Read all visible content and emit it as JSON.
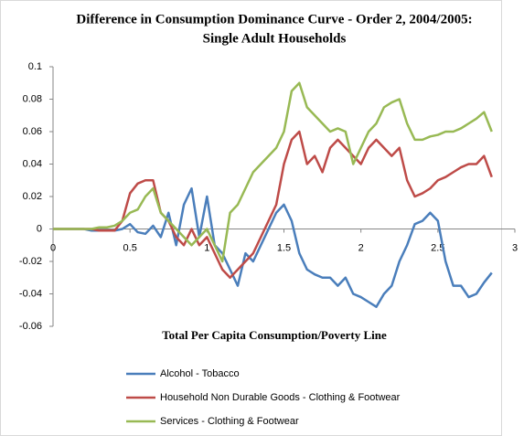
{
  "chart_data": {
    "type": "line",
    "title": "Difference in Consumption Dominance Curve - Order 2, 2004/2005:",
    "subtitle": "Single Adult Households",
    "x_label": "Total Per Capita Consumption/Poverty Line",
    "x": [
      0,
      0.05,
      0.1,
      0.15,
      0.2,
      0.25,
      0.3,
      0.35,
      0.4,
      0.45,
      0.5,
      0.55,
      0.6,
      0.65,
      0.7,
      0.75,
      0.8,
      0.85,
      0.9,
      0.95,
      1,
      1.05,
      1.1,
      1.15,
      1.2,
      1.25,
      1.3,
      1.35,
      1.4,
      1.45,
      1.5,
      1.55,
      1.6,
      1.65,
      1.7,
      1.75,
      1.8,
      1.85,
      1.9,
      1.95,
      2,
      2.05,
      2.1,
      2.15,
      2.2,
      2.25,
      2.3,
      2.35,
      2.4,
      2.45,
      2.5,
      2.55,
      2.6,
      2.65,
      2.7,
      2.75,
      2.8,
      2.85
    ],
    "series": [
      {
        "name": "Alcohol - Tobacco",
        "color": "#4a7ebb",
        "values": [
          0,
          0,
          0,
          0,
          0,
          -0.001,
          -0.001,
          -0.001,
          -0.001,
          0,
          0.003,
          -0.002,
          -0.003,
          0.002,
          -0.005,
          0.01,
          -0.01,
          0.015,
          0.025,
          -0.005,
          0.02,
          -0.01,
          -0.015,
          -0.025,
          -0.035,
          -0.015,
          -0.02,
          -0.01,
          0,
          0.01,
          0.015,
          0.005,
          -0.015,
          -0.025,
          -0.028,
          -0.03,
          -0.03,
          -0.035,
          -0.03,
          -0.04,
          -0.042,
          -0.045,
          -0.048,
          -0.04,
          -0.035,
          -0.02,
          -0.01,
          0.003,
          0.005,
          0.01,
          0.005,
          -0.02,
          -0.035,
          -0.035,
          -0.042,
          -0.04,
          -0.033,
          -0.027
        ]
      },
      {
        "name": "Household Non Durable Goods - Clothing & Footwear",
        "color": "#be4b48",
        "values": [
          0,
          0,
          0,
          0,
          0,
          0,
          -0.001,
          -0.001,
          -0.001,
          0.005,
          0.022,
          0.028,
          0.03,
          0.03,
          0.01,
          0.005,
          -0.005,
          -0.01,
          0,
          -0.01,
          -0.005,
          -0.015,
          -0.025,
          -0.03,
          -0.025,
          -0.02,
          -0.015,
          -0.005,
          0.005,
          0.015,
          0.04,
          0.055,
          0.06,
          0.04,
          0.045,
          0.035,
          0.05,
          0.055,
          0.05,
          0.045,
          0.04,
          0.05,
          0.055,
          0.05,
          0.045,
          0.05,
          0.03,
          0.02,
          0.022,
          0.025,
          0.03,
          0.032,
          0.035,
          0.038,
          0.04,
          0.04,
          0.045,
          0.032
        ]
      },
      {
        "name": "Services - Clothing & Footwear",
        "color": "#98b954",
        "values": [
          0,
          0,
          0,
          0,
          0,
          0,
          0.001,
          0.001,
          0.002,
          0.005,
          0.01,
          0.012,
          0.02,
          0.025,
          0.01,
          0.005,
          0,
          -0.005,
          -0.01,
          -0.005,
          0,
          -0.01,
          -0.02,
          0.01,
          0.015,
          0.025,
          0.035,
          0.04,
          0.045,
          0.05,
          0.06,
          0.085,
          0.09,
          0.075,
          0.07,
          0.065,
          0.06,
          0.062,
          0.06,
          0.04,
          0.05,
          0.06,
          0.065,
          0.075,
          0.078,
          0.08,
          0.065,
          0.055,
          0.055,
          0.057,
          0.058,
          0.06,
          0.06,
          0.062,
          0.065,
          0.068,
          0.072,
          0.06
        ]
      }
    ],
    "xlim": [
      0,
      3
    ],
    "xticks": [
      0,
      0.5,
      1,
      1.5,
      2,
      2.5,
      3
    ],
    "ylim": [
      -0.06,
      0.1
    ],
    "yticks": [
      -0.06,
      -0.04,
      -0.02,
      0,
      0.02,
      0.04,
      0.06,
      0.08,
      0.1
    ],
    "grid": false,
    "legend": "bottom"
  }
}
